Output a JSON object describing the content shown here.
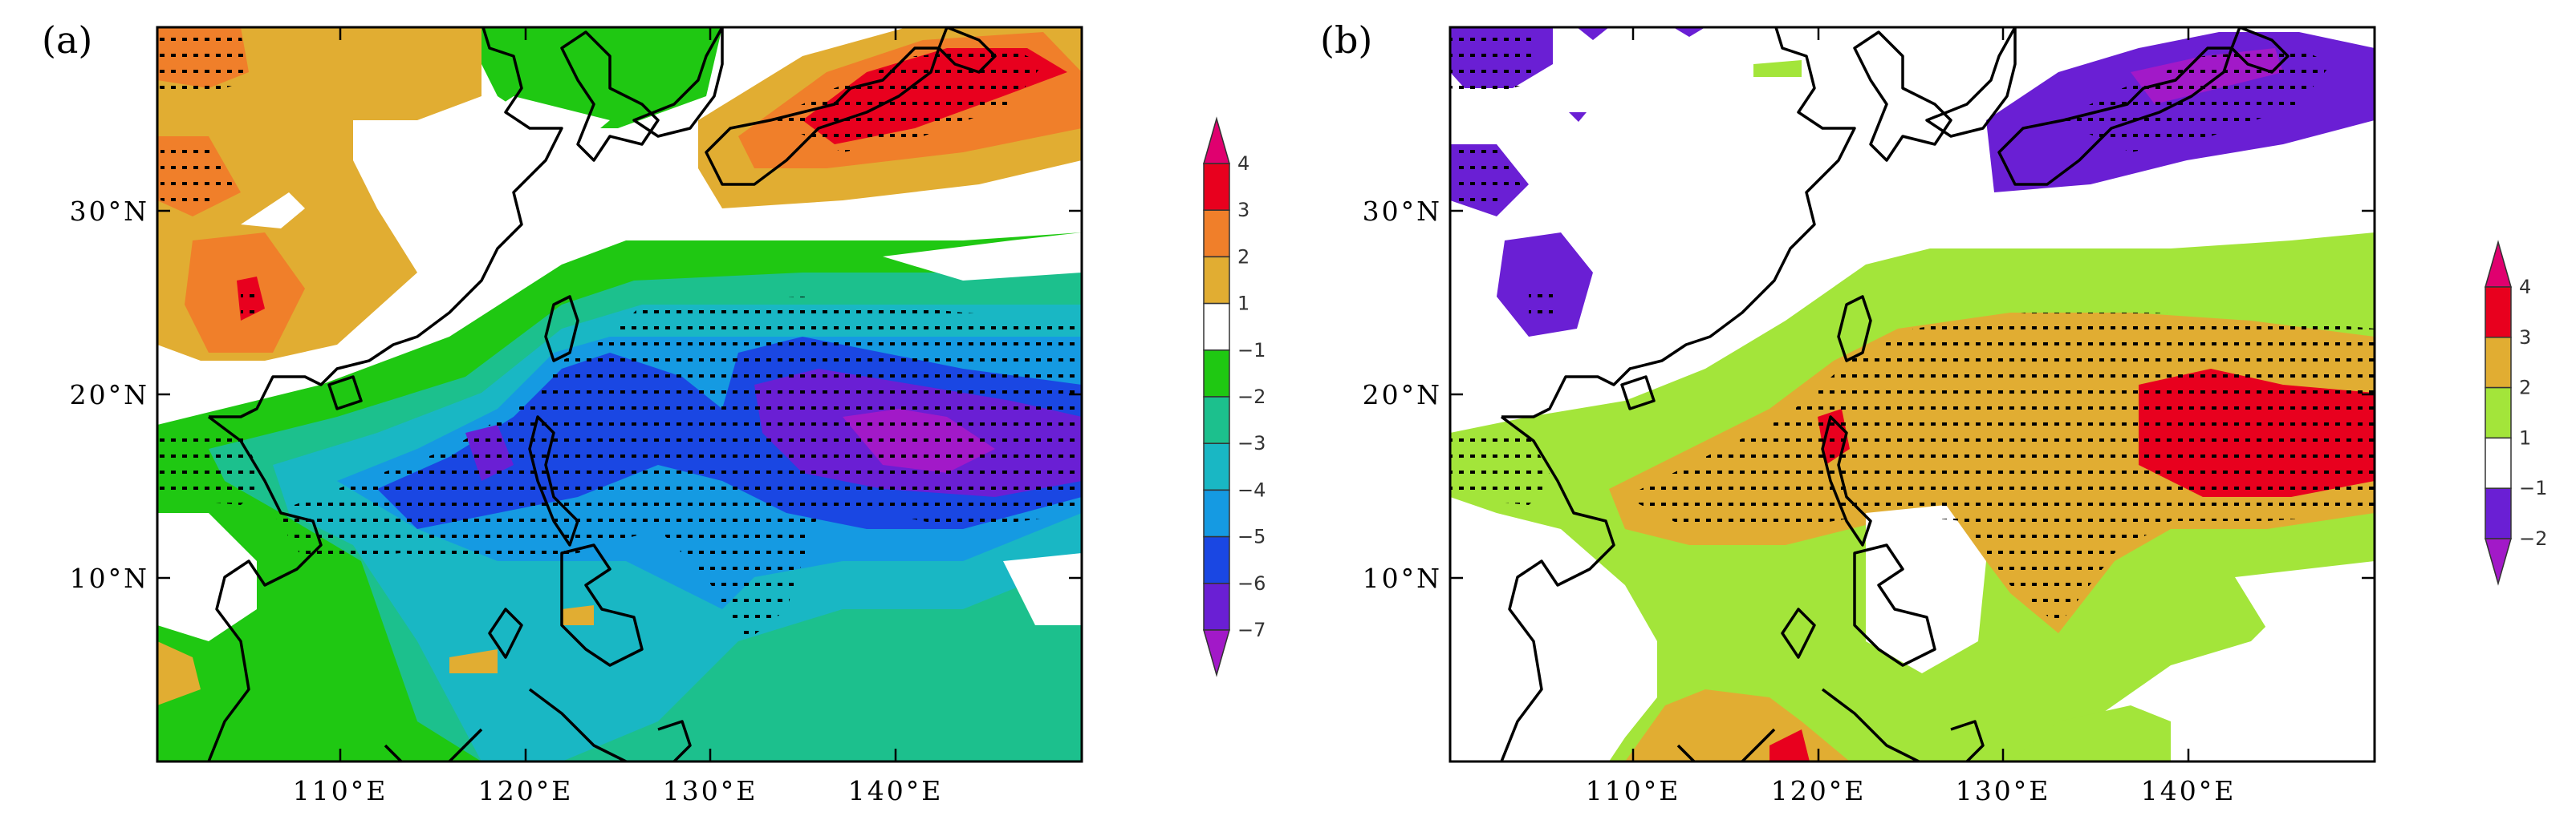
{
  "chart_data": [
    {
      "panel": "a",
      "type": "heatmap",
      "title": "(a)",
      "x_ticks": [
        "110°E",
        "120°E",
        "130°E",
        "140°E"
      ],
      "y_ticks": [
        "30°N",
        "20°N",
        "10°N"
      ],
      "xlim": [
        100,
        150
      ],
      "ylim": [
        0,
        40
      ],
      "colorbar": {
        "labels": [
          "4",
          "3",
          "2",
          "1",
          "−1",
          "−2",
          "−3",
          "−4",
          "−5",
          "−6",
          "−7"
        ],
        "colors": [
          "#e0006f",
          "#e8001e",
          "#f07f2a",
          "#e1ad32",
          "#ffffff",
          "#1fc812",
          "#1cc08d",
          "#19b7c4",
          "#159ae2",
          "#1a47e3",
          "#6a1fd4",
          "#a219c8"
        ]
      },
      "stippling": "significant regions marked with dots"
    },
    {
      "panel": "b",
      "type": "heatmap",
      "title": "(b)",
      "x_ticks": [
        "110°E",
        "120°E",
        "130°E",
        "140°E"
      ],
      "y_ticks": [
        "30°N",
        "20°N",
        "10°N"
      ],
      "xlim": [
        100,
        150
      ],
      "ylim": [
        0,
        40
      ],
      "colorbar": {
        "labels": [
          "4",
          "3",
          "2",
          "1",
          "−1",
          "−2"
        ],
        "colors": [
          "#e0006f",
          "#e8001e",
          "#e1ad32",
          "#a3e53a",
          "#ffffff",
          "#6a1fd4",
          "#a219c8"
        ]
      },
      "stippling": "significant regions marked with dots"
    }
  ]
}
